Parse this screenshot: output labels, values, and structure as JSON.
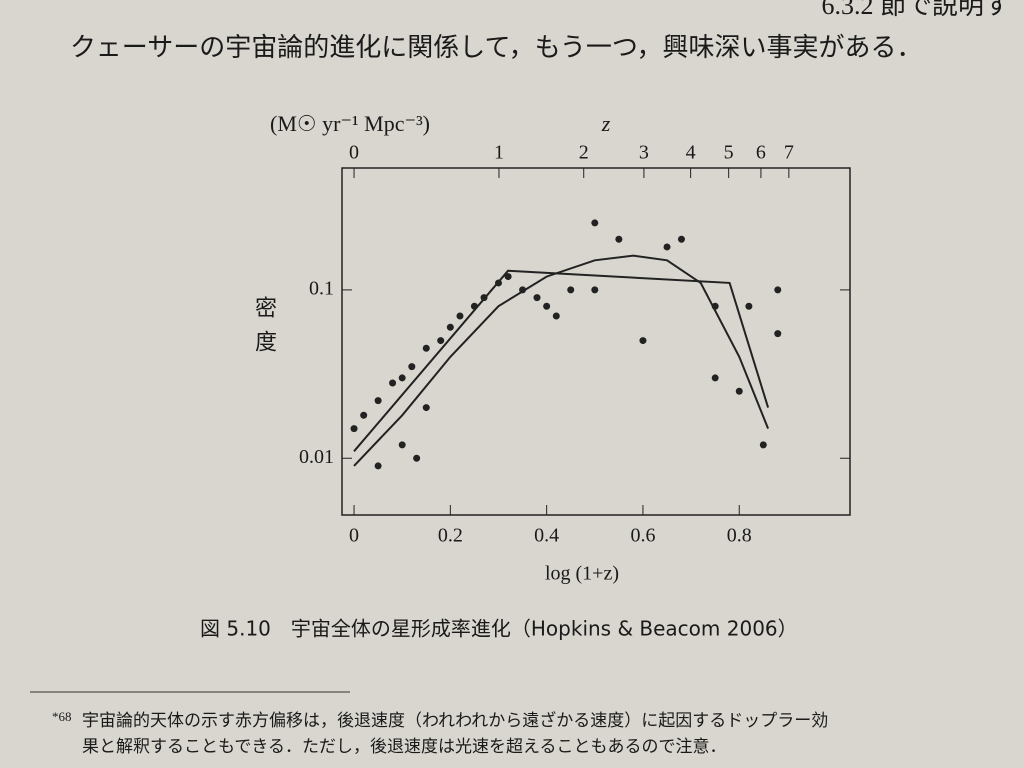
{
  "page_text": {
    "line_fragment": "6.3.2 節で説明す",
    "line_2": "クェーサーの宇宙論的進化に関係して，もう一つ，興味深い事実がある．"
  },
  "chart_data": {
    "type": "scatter",
    "y_unit_label": "(M☉ yr⁻¹ Mpc⁻³)",
    "ylabel": "密度",
    "xlabel": "log (1+z)",
    "top_axis_label": "z",
    "xlim": [
      -0.025,
      1.03
    ],
    "ylim": [
      0.0046,
      0.53
    ],
    "log_y": true,
    "xticks": [
      0,
      0.2,
      0.4,
      0.6,
      0.8
    ],
    "yticks": [
      0.01,
      0.1
    ],
    "top_ticks": [
      {
        "value": 0,
        "label": "0"
      },
      {
        "value": 0.301,
        "label": "1"
      },
      {
        "value": 0.477,
        "label": "2"
      },
      {
        "value": 0.602,
        "label": "3"
      },
      {
        "value": 0.699,
        "label": "4"
      },
      {
        "value": 0.778,
        "label": "5"
      },
      {
        "value": 0.845,
        "label": "6"
      },
      {
        "value": 0.903,
        "label": "7"
      }
    ],
    "points": {
      "color": "#222",
      "x": [
        0.0,
        0.02,
        0.05,
        0.08,
        0.1,
        0.12,
        0.15,
        0.18,
        0.2,
        0.22,
        0.25,
        0.27,
        0.3,
        0.32,
        0.35,
        0.38,
        0.4,
        0.42,
        0.45,
        0.5,
        0.5,
        0.55,
        0.6,
        0.65,
        0.68,
        0.75,
        0.75,
        0.8,
        0.82,
        0.88,
        0.88,
        0.85,
        0.1,
        0.13,
        0.05,
        0.15
      ],
      "values": [
        0.015,
        0.018,
        0.022,
        0.028,
        0.03,
        0.035,
        0.045,
        0.05,
        0.06,
        0.07,
        0.08,
        0.09,
        0.11,
        0.12,
        0.1,
        0.09,
        0.08,
        0.07,
        0.1,
        0.1,
        0.25,
        0.2,
        0.05,
        0.18,
        0.2,
        0.08,
        0.03,
        0.025,
        0.08,
        0.1,
        0.055,
        0.012,
        0.012,
        0.01,
        0.009,
        0.02
      ]
    },
    "curves": [
      {
        "color": "#222",
        "x": [
          0,
          0.1,
          0.2,
          0.3,
          0.4,
          0.5,
          0.58,
          0.65,
          0.72,
          0.8,
          0.86
        ],
        "values": [
          0.009,
          0.018,
          0.04,
          0.08,
          0.12,
          0.15,
          0.16,
          0.15,
          0.11,
          0.04,
          0.015
        ]
      },
      {
        "color": "#222",
        "x": [
          0,
          0.32,
          0.78,
          0.86
        ],
        "values": [
          0.011,
          0.13,
          0.11,
          0.02
        ]
      }
    ],
    "caption": "図 5.10　宇宙全体の星形成率進化（Hopkins & Beacom 2006）"
  },
  "footnote": {
    "marker": "*68",
    "line_1": "宇宙論的天体の示す赤方偏移は，後退速度（われわれから遠ざかる速度）に起因するドップラー効",
    "line_2": "果と解釈することもできる．ただし，後退速度は光速を超えることもあるので注意．"
  }
}
